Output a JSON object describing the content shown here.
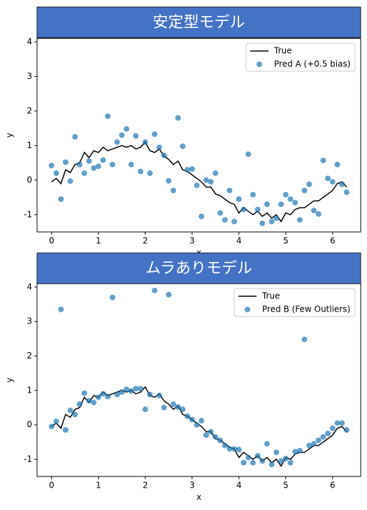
{
  "chart_data": [
    {
      "type": "line",
      "title": "安定型モデル",
      "xlabel": "x",
      "ylabel": "y",
      "x": [
        0.0,
        0.1,
        0.2,
        0.3,
        0.4,
        0.5,
        0.6,
        0.7,
        0.8,
        0.9,
        1.0,
        1.1,
        1.2,
        1.3,
        1.4,
        1.5,
        1.6,
        1.7,
        1.8,
        1.9,
        2.0,
        2.1,
        2.2,
        2.3,
        2.4,
        2.5,
        2.6,
        2.7,
        2.8,
        2.9,
        3.0,
        3.1,
        3.2,
        3.3,
        3.4,
        3.5,
        3.6,
        3.7,
        3.8,
        3.9,
        4.0,
        4.1,
        4.2,
        4.3,
        4.4,
        4.5,
        4.6,
        4.7,
        4.8,
        4.9,
        5.0,
        5.1,
        5.2,
        5.3,
        5.4,
        5.5,
        5.6,
        5.7,
        5.8,
        5.9,
        6.0,
        6.1,
        6.2,
        6.3
      ],
      "series": [
        {
          "name": "True",
          "type": "line",
          "color": "#000000",
          "values": [
            -0.05,
            0.05,
            -0.1,
            0.3,
            0.22,
            0.45,
            0.5,
            0.8,
            0.65,
            0.85,
            0.8,
            0.95,
            0.85,
            0.9,
            0.95,
            1.0,
            0.95,
            1.0,
            0.9,
            0.95,
            1.1,
            0.85,
            0.8,
            0.9,
            0.7,
            0.6,
            0.45,
            0.55,
            0.3,
            0.25,
            0.15,
            0.05,
            -0.05,
            -0.2,
            -0.2,
            -0.4,
            -0.45,
            -0.55,
            -0.65,
            -0.7,
            -0.95,
            -0.8,
            -0.9,
            -1.0,
            -0.9,
            -1.05,
            -0.95,
            -1.1,
            -1.0,
            -1.2,
            -0.95,
            -1.0,
            -0.85,
            -0.8,
            -0.8,
            -0.7,
            -0.6,
            -0.6,
            -0.5,
            -0.4,
            -0.3,
            -0.1,
            -0.05,
            -0.2
          ]
        },
        {
          "name": "Pred A (+0.5 bias)",
          "type": "scatter",
          "color": "#1f77b4",
          "values": [
            0.42,
            0.2,
            -0.55,
            0.52,
            -0.03,
            1.25,
            0.45,
            0.2,
            0.55,
            0.35,
            0.4,
            0.58,
            1.85,
            0.45,
            1.1,
            1.3,
            1.48,
            0.45,
            1.28,
            0.25,
            1.1,
            0.2,
            1.33,
            0.95,
            0.72,
            -0.02,
            -0.3,
            1.8,
            0.98,
            0.3,
            0.32,
            -0.15,
            -1.05,
            0.0,
            -0.05,
            0.2,
            -0.95,
            -1.15,
            -0.3,
            -1.2,
            -0.55,
            -0.85,
            0.75,
            -0.42,
            -0.85,
            -1.25,
            -0.7,
            -1.2,
            -1.1,
            -0.7,
            -0.42,
            -0.55,
            -0.65,
            -1.15,
            -0.3,
            -0.12,
            -0.88,
            -0.98,
            0.57,
            0.05,
            -0.05,
            0.45,
            -0.12,
            -0.35
          ]
        }
      ],
      "xlim": [
        -0.31,
        6.6
      ],
      "ylim": [
        -1.5,
        4.1
      ],
      "xticks": [
        0,
        1,
        2,
        3,
        4,
        5,
        6
      ],
      "yticks": [
        -1,
        0,
        1,
        2,
        3,
        4
      ],
      "legend": "upper right"
    },
    {
      "type": "line",
      "title": "ムラありモデル",
      "xlabel": "x",
      "ylabel": "y",
      "x": [
        0.0,
        0.1,
        0.2,
        0.3,
        0.4,
        0.5,
        0.6,
        0.7,
        0.8,
        0.9,
        1.0,
        1.1,
        1.2,
        1.3,
        1.4,
        1.5,
        1.6,
        1.7,
        1.8,
        1.9,
        2.0,
        2.1,
        2.2,
        2.3,
        2.4,
        2.5,
        2.6,
        2.7,
        2.8,
        2.9,
        3.0,
        3.1,
        3.2,
        3.3,
        3.4,
        3.5,
        3.6,
        3.7,
        3.8,
        3.9,
        4.0,
        4.1,
        4.2,
        4.3,
        4.4,
        4.5,
        4.6,
        4.7,
        4.8,
        4.9,
        5.0,
        5.1,
        5.2,
        5.3,
        5.4,
        5.5,
        5.6,
        5.7,
        5.8,
        5.9,
        6.0,
        6.1,
        6.2,
        6.3
      ],
      "series": [
        {
          "name": "True",
          "type": "line",
          "color": "#000000",
          "values": [
            -0.05,
            0.05,
            -0.1,
            0.3,
            0.22,
            0.45,
            0.5,
            0.8,
            0.65,
            0.85,
            0.8,
            0.95,
            0.85,
            0.9,
            0.95,
            1.0,
            0.95,
            1.0,
            0.9,
            0.95,
            1.1,
            0.85,
            0.8,
            0.9,
            0.7,
            0.6,
            0.45,
            0.55,
            0.3,
            0.25,
            0.15,
            0.05,
            -0.05,
            -0.2,
            -0.2,
            -0.4,
            -0.45,
            -0.55,
            -0.65,
            -0.7,
            -0.95,
            -0.8,
            -0.9,
            -1.0,
            -0.9,
            -1.05,
            -0.95,
            -1.1,
            -1.0,
            -1.2,
            -0.95,
            -1.0,
            -0.85,
            -0.8,
            -0.8,
            -0.7,
            -0.6,
            -0.6,
            -0.5,
            -0.4,
            -0.3,
            -0.1,
            -0.05,
            -0.2
          ]
        },
        {
          "name": "Pred B (Few Outliers)",
          "type": "scatter",
          "color": "#1f77b4",
          "values": [
            -0.05,
            0.1,
            3.35,
            -0.15,
            0.42,
            0.3,
            0.6,
            0.92,
            0.7,
            0.65,
            0.8,
            0.9,
            0.82,
            3.7,
            0.88,
            0.95,
            1.03,
            0.98,
            1.05,
            1.05,
            0.45,
            0.88,
            3.9,
            0.85,
            0.5,
            3.78,
            0.6,
            0.52,
            0.45,
            0.25,
            0.15,
            0.0,
            0.12,
            -0.3,
            -0.2,
            -0.35,
            -0.45,
            -0.6,
            -0.7,
            -0.7,
            -0.72,
            -1.1,
            -0.95,
            -1.1,
            -0.9,
            -1.05,
            -0.55,
            -1.15,
            -0.8,
            -1.05,
            -0.98,
            -1.1,
            -0.78,
            -0.75,
            2.48,
            -0.6,
            -0.55,
            -0.45,
            -0.35,
            -0.25,
            -0.1,
            0.05,
            0.05,
            -0.15
          ]
        }
      ],
      "xlim": [
        -0.31,
        6.6
      ],
      "ylim": [
        -1.5,
        4.1
      ],
      "xticks": [
        0,
        1,
        2,
        3,
        4,
        5,
        6
      ],
      "yticks": [
        -1,
        0,
        1,
        2,
        3,
        4
      ],
      "legend": "upper right"
    }
  ]
}
